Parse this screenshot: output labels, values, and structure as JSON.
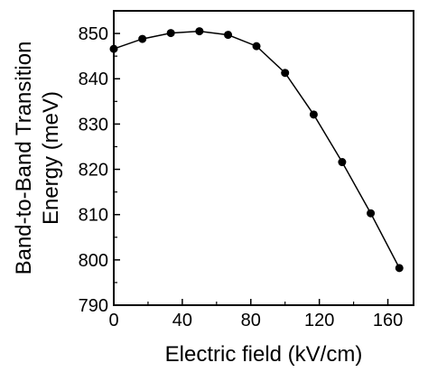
{
  "chart_data": {
    "type": "line",
    "title": "",
    "xlabel": "Electric field (kV/cm)",
    "ylabel_line1": "Band-to-Band Transition",
    "ylabel_line2": "Energy (meV)",
    "xlim": [
      0,
      175
    ],
    "ylim": [
      790,
      855
    ],
    "xticks": [
      0,
      40,
      80,
      120,
      160
    ],
    "yticks": [
      790,
      800,
      810,
      820,
      830,
      840,
      850
    ],
    "markers": "filled-circle",
    "line_color": "#000000",
    "series": [
      {
        "x": [
          0,
          16.7,
          33.3,
          50,
          66.7,
          83.3,
          100,
          116.7,
          133.3,
          150,
          166.7
        ],
        "y": [
          846.6,
          848.8,
          850.1,
          850.5,
          849.7,
          847.2,
          841.3,
          832.1,
          821.6,
          810.3,
          798.2
        ]
      }
    ]
  }
}
